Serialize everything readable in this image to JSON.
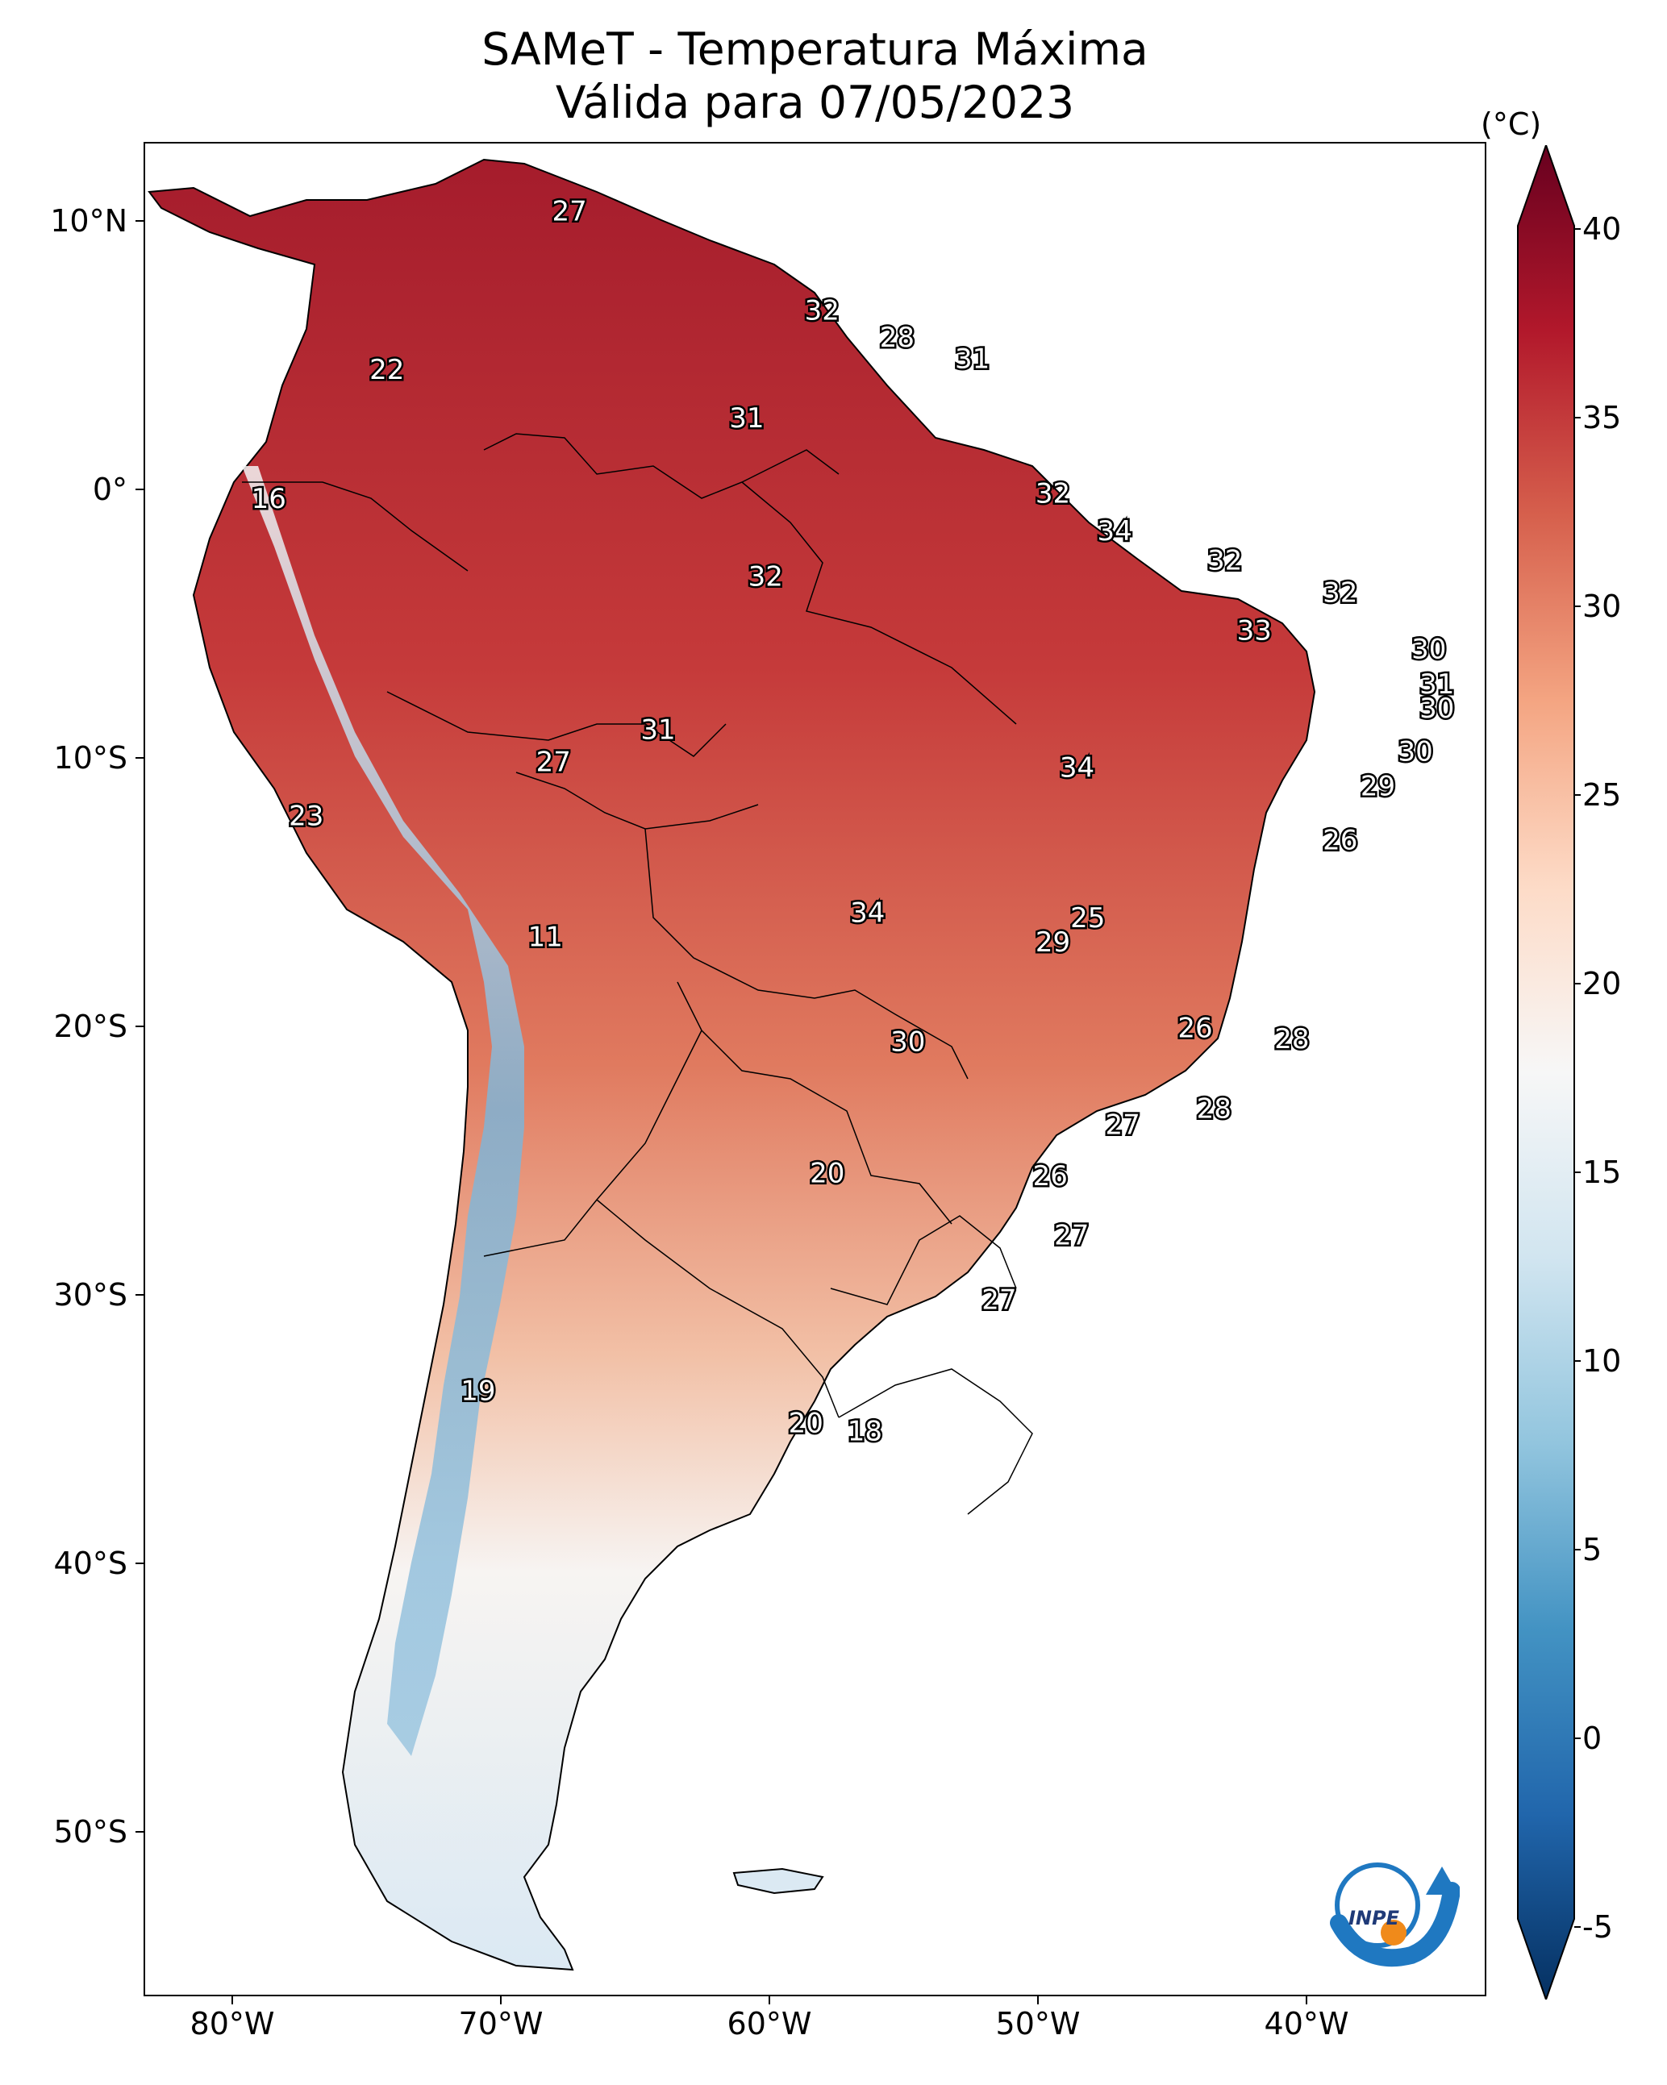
{
  "header": {
    "title_line1": "SAMeT - Temperatura Máxima",
    "title_line2": "Válida para 07/05/2023"
  },
  "axes": {
    "lat_labels": [
      "10°N",
      "0°",
      "10°S",
      "20°S",
      "30°S",
      "40°S",
      "50°S"
    ],
    "lon_labels": [
      "80°W",
      "70°W",
      "60°W",
      "50°W",
      "40°W"
    ]
  },
  "colorbar": {
    "unit": "(°C)",
    "ticks": [
      "40",
      "35",
      "30",
      "25",
      "20",
      "15",
      "10",
      "5",
      "0",
      "-5"
    ],
    "range": [
      -7,
      42
    ],
    "colors": [
      "#053061",
      "#2166ac",
      "#4393c3",
      "#92c5de",
      "#d1e5f0",
      "#f7f7f7",
      "#fddbc7",
      "#f4a582",
      "#d6604d",
      "#b2182b",
      "#67001f"
    ]
  },
  "map_data": {
    "title": "SAMeT - Temperatura Máxima",
    "lon_range": [
      -83,
      -33
    ],
    "lat_range": [
      -56,
      13
    ],
    "station_values": [
      {
        "lon": -67.2,
        "lat": 10.5,
        "value": "27"
      },
      {
        "lon": -57.8,
        "lat": 6.8,
        "value": "32"
      },
      {
        "lon": -55.0,
        "lat": 5.8,
        "value": "28"
      },
      {
        "lon": -52.2,
        "lat": 5.0,
        "value": "31"
      },
      {
        "lon": -74.0,
        "lat": 4.6,
        "value": "22"
      },
      {
        "lon": -60.6,
        "lat": 2.8,
        "value": "31"
      },
      {
        "lon": -78.4,
        "lat": -0.2,
        "value": "16"
      },
      {
        "lon": -49.2,
        "lat": 0.0,
        "value": "32"
      },
      {
        "lon": -46.9,
        "lat": -1.4,
        "value": "34"
      },
      {
        "lon": -59.9,
        "lat": -3.1,
        "value": "32"
      },
      {
        "lon": -42.8,
        "lat": -2.5,
        "value": "32"
      },
      {
        "lon": -38.5,
        "lat": -3.7,
        "value": "32"
      },
      {
        "lon": -41.7,
        "lat": -5.1,
        "value": "33"
      },
      {
        "lon": -35.2,
        "lat": -5.8,
        "value": "30"
      },
      {
        "lon": -34.9,
        "lat": -7.1,
        "value": "31"
      },
      {
        "lon": -34.9,
        "lat": -8.0,
        "value": "30"
      },
      {
        "lon": -63.9,
        "lat": -8.8,
        "value": "31"
      },
      {
        "lon": -67.8,
        "lat": -10.0,
        "value": "27"
      },
      {
        "lon": -48.3,
        "lat": -10.2,
        "value": "34"
      },
      {
        "lon": -35.7,
        "lat": -9.6,
        "value": "30"
      },
      {
        "lon": -37.1,
        "lat": -10.9,
        "value": "29"
      },
      {
        "lon": -38.5,
        "lat": -12.9,
        "value": "26"
      },
      {
        "lon": -77.0,
        "lat": -12.0,
        "value": "23"
      },
      {
        "lon": -47.9,
        "lat": -15.8,
        "value": "25"
      },
      {
        "lon": -49.2,
        "lat": -16.7,
        "value": "29"
      },
      {
        "lon": -56.1,
        "lat": -15.6,
        "value": "34"
      },
      {
        "lon": -68.1,
        "lat": -16.5,
        "value": "11"
      },
      {
        "lon": -43.9,
        "lat": -19.9,
        "value": "26"
      },
      {
        "lon": -40.3,
        "lat": -20.3,
        "value": "28"
      },
      {
        "lon": -54.6,
        "lat": -20.4,
        "value": "30"
      },
      {
        "lon": -43.2,
        "lat": -22.9,
        "value": "28"
      },
      {
        "lon": -46.6,
        "lat": -23.5,
        "value": "27"
      },
      {
        "lon": -57.6,
        "lat": -25.3,
        "value": "20"
      },
      {
        "lon": -49.3,
        "lat": -25.4,
        "value": "26"
      },
      {
        "lon": -48.5,
        "lat": -27.6,
        "value": "27"
      },
      {
        "lon": -51.2,
        "lat": -30.0,
        "value": "27"
      },
      {
        "lon": -70.6,
        "lat": -33.4,
        "value": "19"
      },
      {
        "lon": -58.4,
        "lat": -34.6,
        "value": "20"
      },
      {
        "lon": -56.2,
        "lat": -34.9,
        "value": "18"
      }
    ]
  },
  "logo": {
    "text": "INPE"
  }
}
